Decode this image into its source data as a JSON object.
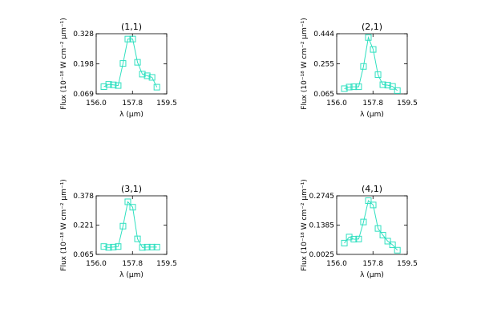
{
  "chart_data": [
    {
      "type": "line",
      "title": "(1,1)",
      "xlabel": "λ (μm)",
      "ylabel": "Flux (10⁻¹⁸ W cm⁻² μm⁻¹)",
      "xlim": [
        156.0,
        159.5
      ],
      "ylim": [
        0.069,
        0.328
      ],
      "xticks": [
        "156.0",
        "157.8",
        "159.5"
      ],
      "yticks": [
        "0.069",
        "0.198",
        "0.328"
      ],
      "series": [
        {
          "x": [
            156.38,
            156.62,
            156.85,
            157.09,
            157.33,
            157.57,
            157.81,
            158.05,
            158.29,
            158.53,
            158.77,
            159.01
          ],
          "y": [
            0.1,
            0.11,
            0.108,
            0.105,
            0.2,
            0.305,
            0.305,
            0.205,
            0.154,
            0.147,
            0.14,
            0.098
          ]
        }
      ],
      "color": "#2fe0c0"
    },
    {
      "type": "line",
      "title": "(2,1)",
      "xlabel": "λ (μm)",
      "ylabel": "Flux (10⁻¹⁸ W cm⁻² μm⁻¹)",
      "xlim": [
        156.0,
        159.5
      ],
      "ylim": [
        0.065,
        0.444
      ],
      "xticks": [
        "156.0",
        "157.8",
        "159.5"
      ],
      "yticks": [
        "0.065",
        "0.255",
        "0.444"
      ],
      "series": [
        {
          "x": [
            156.38,
            156.62,
            156.85,
            157.09,
            157.33,
            157.57,
            157.81,
            158.05,
            158.29,
            158.53,
            158.77,
            159.01
          ],
          "y": [
            0.098,
            0.108,
            0.11,
            0.11,
            0.238,
            0.42,
            0.345,
            0.186,
            0.123,
            0.12,
            0.112,
            0.086
          ]
        }
      ],
      "color": "#2fe0c0"
    },
    {
      "type": "line",
      "title": "(3,1)",
      "xlabel": "λ (μm)",
      "ylabel": "Flux (10⁻¹⁸ W cm⁻² μm⁻¹)",
      "xlim": [
        156.0,
        159.5
      ],
      "ylim": [
        0.065,
        0.378
      ],
      "xticks": [
        "156.0",
        "157.8",
        "159.5"
      ],
      "yticks": [
        "0.065",
        "0.221",
        "0.378"
      ],
      "series": [
        {
          "x": [
            156.38,
            156.62,
            156.85,
            157.09,
            157.33,
            157.57,
            157.81,
            158.05,
            158.29,
            158.53,
            158.77,
            159.01
          ],
          "y": [
            0.107,
            0.102,
            0.104,
            0.107,
            0.216,
            0.346,
            0.317,
            0.148,
            0.102,
            0.104,
            0.104,
            0.104
          ]
        }
      ],
      "color": "#2fe0c0"
    },
    {
      "type": "line",
      "title": "(4,1)",
      "xlabel": "λ (μm)",
      "ylabel": "Flux (10⁻¹⁸ W cm⁻² μm⁻¹)",
      "xlim": [
        156.0,
        159.5
      ],
      "ylim": [
        0.0025,
        0.2745
      ],
      "xticks": [
        "156.0",
        "157.8",
        "159.5"
      ],
      "yticks": [
        "0.0025",
        "0.1385",
        "0.2745"
      ],
      "series": [
        {
          "x": [
            156.38,
            156.62,
            156.85,
            157.09,
            157.33,
            157.57,
            157.81,
            158.05,
            158.29,
            158.53,
            158.77,
            159.01
          ],
          "y": [
            0.055,
            0.083,
            0.073,
            0.074,
            0.153,
            0.252,
            0.232,
            0.123,
            0.092,
            0.064,
            0.047,
            0.022
          ]
        }
      ],
      "color": "#2fe0c0"
    }
  ]
}
